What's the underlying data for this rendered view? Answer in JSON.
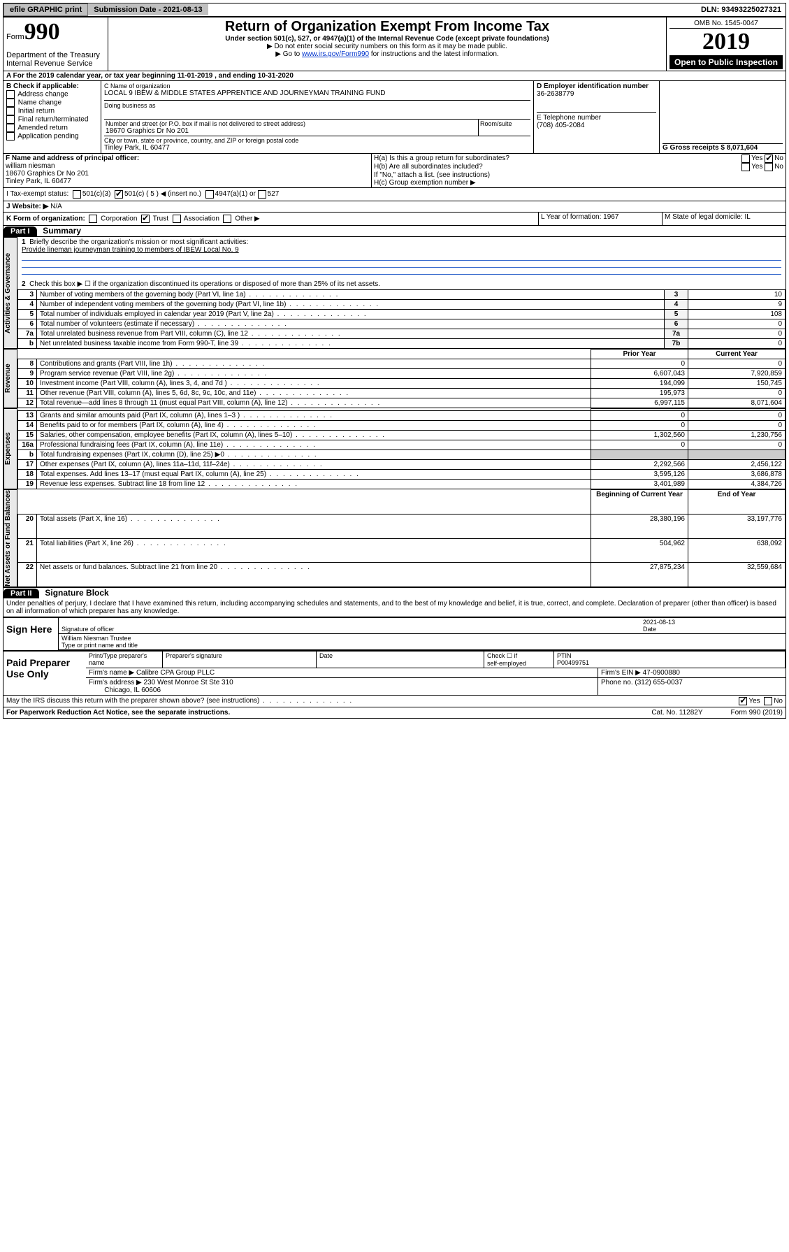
{
  "topbar": {
    "efile": "efile GRAPHIC print",
    "submission": "Submission Date - 2021-08-13",
    "dln": "DLN: 93493225027321"
  },
  "header": {
    "form_label": "Form",
    "form_no": "990",
    "dept": "Department of the Treasury\nInternal Revenue Service",
    "title": "Return of Organization Exempt From Income Tax",
    "subtitle": "Under section 501(c), 527, or 4947(a)(1) of the Internal Revenue Code (except private foundations)",
    "note1": "▶ Do not enter social security numbers on this form as it may be made public.",
    "note2_pre": "▶ Go to ",
    "note2_link": "www.irs.gov/Form990",
    "note2_post": " for instructions and the latest information.",
    "omb": "OMB No. 1545-0047",
    "year": "2019",
    "open": "Open to Public Inspection"
  },
  "period": "A For the 2019 calendar year, or tax year beginning 11-01-2019   , and ending 10-31-2020",
  "boxB": {
    "label": "B Check if applicable:",
    "opts": [
      "Address change",
      "Name change",
      "Initial return",
      "Final return/terminated",
      "Amended return",
      "Application pending"
    ]
  },
  "boxC": {
    "label": "C Name of organization",
    "name": "LOCAL 9 IBEW & MIDDLE STATES APPRENTICE AND JOURNEYMAN TRAINING FUND",
    "dba": "Doing business as",
    "addr_label": "Number and street (or P.O. box if mail is not delivered to street address)",
    "room": "Room/suite",
    "addr": "18670 Graphics Dr No 201",
    "city_label": "City or town, state or province, country, and ZIP or foreign postal code",
    "city": "Tinley Park, IL  60477"
  },
  "boxD": {
    "label": "D Employer identification number",
    "val": "36-2638779"
  },
  "boxE": {
    "label": "E Telephone number",
    "val": "(708) 405-2084"
  },
  "boxG": {
    "label": "G Gross receipts $ 8,071,604"
  },
  "boxF": {
    "label": "F  Name and address of principal officer:",
    "name": "william niesman",
    "addr1": "18670 Graphics Dr No 201",
    "addr2": "Tinley Park, IL  60477"
  },
  "boxH": {
    "a": "H(a)  Is this a group return for subordinates?",
    "b": "H(b)  Are all subordinates included?",
    "bnote": "If \"No,\" attach a list. (see instructions)",
    "c": "H(c)  Group exemption number ▶",
    "yes": "Yes",
    "no": "No"
  },
  "lineI": {
    "label": "I   Tax-exempt status:",
    "o1": "501(c)(3)",
    "o2": "501(c) ( 5 ) ◀ (insert no.)",
    "o3": "4947(a)(1) or",
    "o4": "527"
  },
  "lineJ": {
    "label": "J   Website: ▶",
    "val": "N/A"
  },
  "lineK": {
    "label": "K Form of organization:",
    "o1": "Corporation",
    "o2": "Trust",
    "o3": "Association",
    "o4": "Other ▶"
  },
  "lineL": {
    "label": "L Year of formation: 1967"
  },
  "lineM": {
    "label": "M State of legal domicile: IL"
  },
  "part1": {
    "bar": "Part I",
    "title": "Summary"
  },
  "summary": {
    "q1": "Briefly describe the organization's mission or most significant activities:",
    "q1v": "Provide lineman journeyman training to members of IBEW Local No. 9",
    "q2": "Check this box ▶ ☐  if the organization discontinued its operations or disposed of more than 25% of its net assets.",
    "rows_top": [
      {
        "n": "3",
        "t": "Number of voting members of the governing body (Part VI, line 1a)",
        "k": "3",
        "v": "10"
      },
      {
        "n": "4",
        "t": "Number of independent voting members of the governing body (Part VI, line 1b)",
        "k": "4",
        "v": "9"
      },
      {
        "n": "5",
        "t": "Total number of individuals employed in calendar year 2019 (Part V, line 2a)",
        "k": "5",
        "v": "108"
      },
      {
        "n": "6",
        "t": "Total number of volunteers (estimate if necessary)",
        "k": "6",
        "v": "0"
      },
      {
        "n": "7a",
        "t": "Total unrelated business revenue from Part VIII, column (C), line 12",
        "k": "7a",
        "v": "0"
      },
      {
        "n": "b",
        "t": "Net unrelated business taxable income from Form 990-T, line 39",
        "k": "7b",
        "v": "0"
      }
    ],
    "col_prior": "Prior Year",
    "col_curr": "Current Year",
    "col_beg": "Beginning of Current Year",
    "col_end": "End of Year",
    "rev": [
      {
        "n": "8",
        "t": "Contributions and grants (Part VIII, line 1h)",
        "p": "0",
        "c": "0"
      },
      {
        "n": "9",
        "t": "Program service revenue (Part VIII, line 2g)",
        "p": "6,607,043",
        "c": "7,920,859"
      },
      {
        "n": "10",
        "t": "Investment income (Part VIII, column (A), lines 3, 4, and 7d )",
        "p": "194,099",
        "c": "150,745"
      },
      {
        "n": "11",
        "t": "Other revenue (Part VIII, column (A), lines 5, 6d, 8c, 9c, 10c, and 11e)",
        "p": "195,973",
        "c": "0"
      },
      {
        "n": "12",
        "t": "Total revenue—add lines 8 through 11 (must equal Part VIII, column (A), line 12)",
        "p": "6,997,115",
        "c": "8,071,604"
      }
    ],
    "exp": [
      {
        "n": "13",
        "t": "Grants and similar amounts paid (Part IX, column (A), lines 1–3 )",
        "p": "0",
        "c": "0"
      },
      {
        "n": "14",
        "t": "Benefits paid to or for members (Part IX, column (A), line 4)",
        "p": "0",
        "c": "0"
      },
      {
        "n": "15",
        "t": "Salaries, other compensation, employee benefits (Part IX, column (A), lines 5–10)",
        "p": "1,302,560",
        "c": "1,230,756"
      },
      {
        "n": "16a",
        "t": "Professional fundraising fees (Part IX, column (A), line 11e)",
        "p": "0",
        "c": "0"
      },
      {
        "n": "b",
        "t": "Total fundraising expenses (Part IX, column (D), line 25) ▶0",
        "p": "",
        "c": ""
      },
      {
        "n": "17",
        "t": "Other expenses (Part IX, column (A), lines 11a–11d, 11f–24e)",
        "p": "2,292,566",
        "c": "2,456,122"
      },
      {
        "n": "18",
        "t": "Total expenses. Add lines 13–17 (must equal Part IX, column (A), line 25)",
        "p": "3,595,126",
        "c": "3,686,878"
      },
      {
        "n": "19",
        "t": "Revenue less expenses. Subtract line 18 from line 12",
        "p": "3,401,989",
        "c": "4,384,726"
      }
    ],
    "net": [
      {
        "n": "20",
        "t": "Total assets (Part X, line 16)",
        "p": "28,380,196",
        "c": "33,197,776"
      },
      {
        "n": "21",
        "t": "Total liabilities (Part X, line 26)",
        "p": "504,962",
        "c": "638,092"
      },
      {
        "n": "22",
        "t": "Net assets or fund balances. Subtract line 21 from line 20",
        "p": "27,875,234",
        "c": "32,559,684"
      }
    ],
    "vlabels": {
      "gov": "Activities & Governance",
      "rev": "Revenue",
      "exp": "Expenses",
      "net": "Net Assets or Fund Balances"
    }
  },
  "part2": {
    "bar": "Part II",
    "title": "Signature Block",
    "decl": "Under penalties of perjury, I declare that I have examined this return, including accompanying schedules and statements, and to the best of my knowledge and belief, it is true, correct, and complete. Declaration of preparer (other than officer) is based on all information of which preparer has any knowledge."
  },
  "sign": {
    "here": "Sign Here",
    "sig_label": "Signature of officer",
    "date_label": "Date",
    "date": "2021-08-13",
    "name": "William Niesman  Trustee",
    "name_label": "Type or print name and title"
  },
  "paid": {
    "title": "Paid Preparer Use Only",
    "h1": "Print/Type preparer's name",
    "h2": "Preparer's signature",
    "h3": "Date",
    "h4a": "Check ☐ if",
    "h4b": "self-employed",
    "h5": "PTIN",
    "ptin": "P00499751",
    "firm_l": "Firm's name   ▶",
    "firm": "Calibre CPA Group PLLC",
    "ein_l": "Firm's EIN ▶",
    "ein": "47-0900880",
    "addr_l": "Firm's address ▶",
    "addr": "230 West Monroe St Ste 310",
    "city": "Chicago, IL  60606",
    "phone_l": "Phone no.",
    "phone": "(312) 655-0037"
  },
  "bottom": {
    "q": "May the IRS discuss this return with the preparer shown above? (see instructions)",
    "yes": "Yes",
    "no": "No",
    "pra": "For Paperwork Reduction Act Notice, see the separate instructions.",
    "cat": "Cat. No. 11282Y",
    "form": "Form 990 (2019)"
  }
}
